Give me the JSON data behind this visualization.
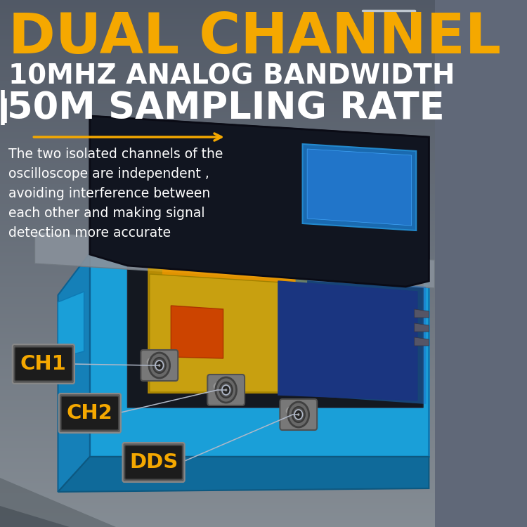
{
  "bg_top_color": "#5a6070",
  "bg_bottom_color": "#7a8090",
  "title_line1": "DUAL CHANNEL",
  "title_line2": "10MHZ ANALOG BANDWIDTH",
  "title_line3": "50M SAMPLING RATE",
  "title_color": "#F5A800",
  "white_color": "#ffffff",
  "description": "The two isolated channels of the\noscilloscope are independent ,\navoiding interference between\neach other and making signal\ndetection more accurate",
  "label_ch1": "CH1",
  "label_ch2": "CH2",
  "label_dds": "DDS",
  "label_color": "#F5A800",
  "label_bg": "#1c1c1c",
  "device_blue": "#1a9fd8",
  "device_dark": "#151520",
  "pcb_yellow": "#c8a000",
  "pcb_blue": "#1a55cc",
  "connector_gray": "#909090",
  "arrow_color": "#b0b8c8",
  "bracket_color": "#c0c8d0"
}
